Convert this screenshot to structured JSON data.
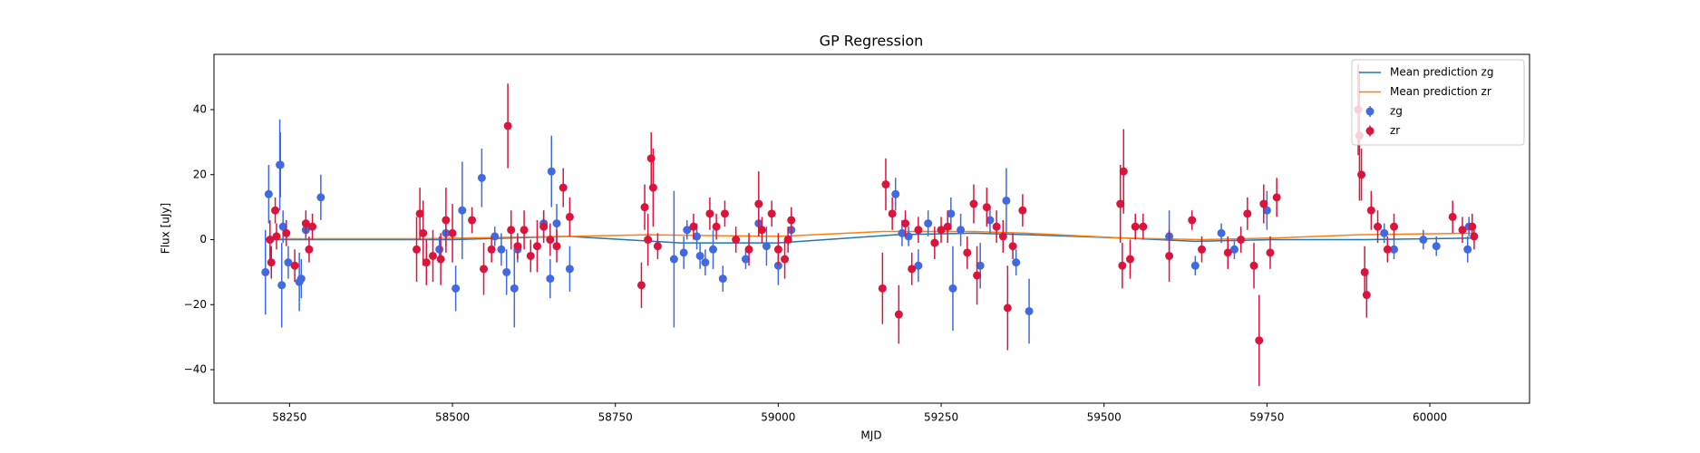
{
  "chart_data": {
    "type": "scatter",
    "title": "GP Regression",
    "x_label": "MJD",
    "y_label": "Flux [uJy]",
    "xlim": [
      58134,
      60153
    ],
    "ylim": [
      -50.3,
      57
    ],
    "xticks": [
      58250,
      58500,
      58750,
      59000,
      59250,
      59500,
      59750,
      60000
    ],
    "yticks": [
      {
        "value": -40,
        "label": "−40"
      },
      {
        "value": -20,
        "label": "−20"
      },
      0,
      20,
      40
    ],
    "legend": "upper right",
    "lines": [
      {
        "name": "Mean prediction zg",
        "color": "#1f77b4",
        "x": [
          58213,
          58300,
          58500,
          58680,
          58850,
          59000,
          59180,
          59300,
          59385,
          59530,
          59640,
          59760,
          59900,
          60068
        ],
        "values": [
          0,
          0,
          0,
          1,
          -1,
          -1,
          1.5,
          2,
          1.5,
          0.5,
          -0.5,
          0,
          0,
          0.5
        ]
      },
      {
        "name": "Mean prediction zr",
        "color": "#ff7f0e",
        "x": [
          58220,
          58300,
          58450,
          58680,
          58800,
          59000,
          59160,
          59300,
          59380,
          59530,
          59650,
          59760,
          59890,
          60068
        ],
        "values": [
          0.3,
          0.3,
          0.3,
          1,
          1.5,
          1,
          2.5,
          2.5,
          2,
          0.5,
          0,
          0.5,
          1.5,
          2
        ]
      }
    ],
    "series": [
      {
        "name": "zg",
        "color": "#4169e1",
        "x": [
          58213,
          58218,
          58235,
          58238,
          58240,
          58236,
          58248,
          58265,
          58268,
          58275,
          58298,
          58480,
          58490,
          58505,
          58515,
          58545,
          58565,
          58575,
          58583,
          58595,
          58600,
          58640,
          58652,
          58650,
          58660,
          58680,
          58840,
          58855,
          58860,
          58875,
          58880,
          58888,
          58900,
          58915,
          58950,
          58970,
          58982,
          59000,
          59020,
          59180,
          59190,
          59200,
          59215,
          59230,
          59265,
          59268,
          59280,
          59310,
          59325,
          59350,
          59365,
          59385,
          59600,
          59640,
          59680,
          59700,
          59750,
          59930,
          59945,
          59990,
          60010,
          60060,
          60058
        ],
        "values": [
          -10,
          14,
          23,
          -14,
          4,
          23,
          -7,
          -13,
          -12,
          3,
          13,
          -3,
          2,
          -15,
          9,
          19,
          1,
          -3,
          -10,
          -15,
          -3,
          5,
          21,
          -12,
          5,
          -9,
          -6,
          -4,
          3,
          1,
          -5,
          -7,
          -3,
          -12,
          -6,
          5,
          -2,
          -8,
          3,
          14,
          2,
          1,
          -8,
          5,
          8,
          -15,
          3,
          -8,
          6,
          12,
          -7,
          -22,
          1,
          -8,
          2,
          -3,
          9,
          2,
          -3,
          0,
          -2,
          4,
          -3
        ],
        "errors": [
          13,
          9,
          14,
          13,
          5,
          10,
          5,
          9,
          6,
          3,
          7,
          4,
          4,
          7,
          15,
          9,
          3,
          5,
          7,
          12,
          4,
          4,
          11,
          6,
          6,
          7,
          21,
          5,
          3,
          4,
          4,
          4,
          6,
          4,
          3,
          4,
          6,
          6,
          4,
          5,
          4,
          3,
          5,
          4,
          5,
          13,
          5,
          7,
          4,
          10,
          4,
          10,
          8,
          3,
          3,
          3,
          6,
          3,
          3,
          3,
          3,
          3,
          4
        ]
      },
      {
        "name": "zr",
        "color": "#dc143c",
        "x": [
          58220,
          58222,
          58228,
          58230,
          58245,
          58258,
          58275,
          58280,
          58285,
          58445,
          58450,
          58455,
          58460,
          58470,
          58482,
          58490,
          58500,
          58530,
          58548,
          58560,
          58585,
          58590,
          58600,
          58610,
          58620,
          58630,
          58640,
          58650,
          58660,
          58670,
          58680,
          58790,
          58795,
          58800,
          58805,
          58808,
          58815,
          58870,
          58895,
          58905,
          58918,
          58935,
          58955,
          58970,
          58975,
          58990,
          59000,
          59010,
          59015,
          59020,
          59160,
          59165,
          59175,
          59185,
          59195,
          59205,
          59215,
          59240,
          59250,
          59260,
          59290,
          59300,
          59305,
          59320,
          59335,
          59345,
          59352,
          59360,
          59375,
          59525,
          59528,
          59530,
          59540,
          59548,
          59560,
          59600,
          59635,
          59650,
          59690,
          59710,
          59720,
          59730,
          59738,
          59745,
          59755,
          59765,
          59890,
          59892,
          59895,
          59900,
          59903,
          59910,
          59920,
          59935,
          59945,
          60035,
          60050,
          60065,
          60068
        ],
        "values": [
          0,
          -7,
          9,
          1,
          2,
          -8,
          5,
          -3,
          4,
          -3,
          8,
          2,
          -7,
          -5,
          -6,
          6,
          2,
          6,
          -9,
          -3,
          35,
          3,
          -2,
          3,
          -5,
          -2,
          4,
          0,
          -2,
          16,
          7,
          -14,
          10,
          0,
          25,
          16,
          -2,
          4,
          8,
          4,
          8,
          0,
          -3,
          11,
          3,
          8,
          -3,
          -6,
          0,
          6,
          -15,
          17,
          8,
          -23,
          5,
          -9,
          3,
          -1,
          3,
          4,
          -4,
          11,
          -11,
          10,
          4,
          1,
          -21,
          -2,
          9,
          11,
          -8,
          21,
          -6,
          4,
          4,
          -5,
          6,
          -3,
          -4,
          0,
          8,
          -8,
          -31,
          11,
          -4,
          13,
          40,
          32,
          20,
          -10,
          -17,
          9,
          4,
          -3,
          4,
          7,
          3,
          4,
          1
        ],
        "errors": [
          6,
          5,
          4,
          4,
          4,
          5,
          4,
          4,
          4,
          10,
          8,
          10,
          7,
          8,
          8,
          10,
          9,
          4,
          8,
          4,
          13,
          6,
          4,
          6,
          5,
          8,
          5,
          5,
          5,
          6,
          6,
          7,
          7,
          8,
          8,
          12,
          4,
          4,
          5,
          4,
          4,
          4,
          5,
          10,
          4,
          4,
          5,
          6,
          4,
          4,
          11,
          8,
          5,
          9,
          4,
          5,
          4,
          5,
          4,
          5,
          5,
          6,
          9,
          6,
          5,
          5,
          13,
          4,
          5,
          12,
          7,
          13,
          6,
          4,
          4,
          8,
          3,
          4,
          5,
          4,
          5,
          7,
          14,
          6,
          5,
          6,
          14,
          20,
          8,
          8,
          7,
          6,
          5,
          4,
          4,
          5,
          4,
          4,
          4
        ]
      }
    ]
  }
}
